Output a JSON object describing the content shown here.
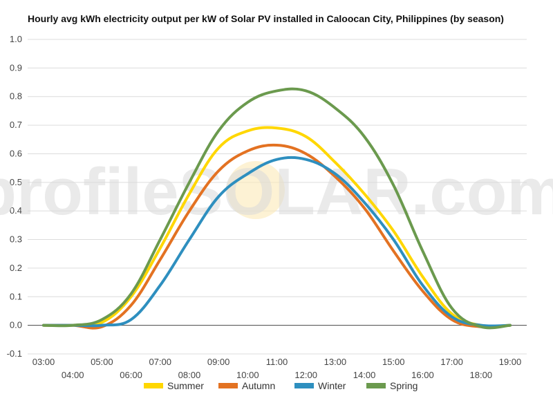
{
  "chart_data": {
    "type": "line",
    "title": "Hourly avg kWh electricity output per kW of Solar PV installed in Caloocan City, Philippines (by season)",
    "xlabel": "",
    "ylabel": "",
    "ylim": [
      -0.1,
      1.0
    ],
    "yticks": [
      "-0.1",
      "0.0",
      "0.1",
      "0.2",
      "0.3",
      "0.4",
      "0.5",
      "0.6",
      "0.7",
      "0.8",
      "0.9",
      "1.0"
    ],
    "x": [
      "03:00",
      "04:00",
      "05:00",
      "06:00",
      "07:00",
      "08:00",
      "09:00",
      "10:00",
      "11:00",
      "12:00",
      "13:00",
      "14:00",
      "15:00",
      "16:00",
      "17:00",
      "18:00",
      "19:00"
    ],
    "grid": true,
    "legend_position": "bottom",
    "series": [
      {
        "name": "Summer",
        "color": "#FFD700",
        "values": [
          0,
          0,
          0.01,
          0.1,
          0.27,
          0.46,
          0.62,
          0.68,
          0.69,
          0.66,
          0.57,
          0.46,
          0.33,
          0.17,
          0.04,
          0,
          0
        ]
      },
      {
        "name": "Autumn",
        "color": "#E37222",
        "values": [
          0,
          0,
          -0.005,
          0.07,
          0.23,
          0.4,
          0.54,
          0.61,
          0.63,
          0.6,
          0.52,
          0.41,
          0.26,
          0.12,
          0.02,
          -0.005,
          0
        ]
      },
      {
        "name": "Winter",
        "color": "#2E8FBF",
        "values": [
          0,
          0,
          0,
          0.02,
          0.14,
          0.3,
          0.45,
          0.53,
          0.58,
          0.58,
          0.53,
          0.43,
          0.3,
          0.14,
          0.03,
          0,
          0
        ]
      },
      {
        "name": "Spring",
        "color": "#6B9A4E",
        "values": [
          0,
          0,
          0.02,
          0.11,
          0.3,
          0.5,
          0.68,
          0.78,
          0.82,
          0.82,
          0.76,
          0.66,
          0.49,
          0.26,
          0.06,
          -0.005,
          0
        ]
      }
    ],
    "watermark": "profileSOLAR.com"
  }
}
